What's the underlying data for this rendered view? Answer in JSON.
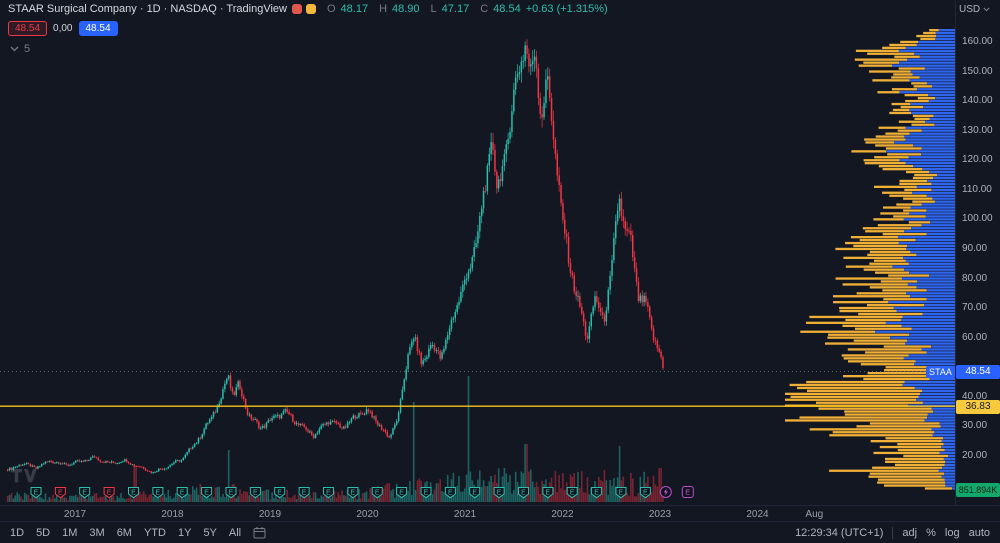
{
  "header": {
    "title": "STAAR Surgical Company · 1D · NASDAQ · TradingView",
    "ohlc": {
      "o_label": "O",
      "o": "48.17",
      "h_label": "H",
      "h": "48.90",
      "l_label": "L",
      "l": "47.17",
      "c_label": "C",
      "c": "48.54",
      "change": "+0.63 (+1.315%)"
    },
    "sell": "48.54",
    "spread": "0,00",
    "buy": "48.54",
    "indicator_value": "5",
    "currency": "USD"
  },
  "price_axis": {
    "labels": [
      "160.00",
      "150.00",
      "140.00",
      "130.00",
      "120.00",
      "110.00",
      "100.00",
      "90.00",
      "80.00",
      "70.00",
      "60.00",
      "40.00",
      "30.00",
      "20.00"
    ],
    "symbol_tag": "STAA",
    "last_price": "48.54",
    "level_label": "36.83",
    "volume_tag": "851.894K"
  },
  "time_axis": {
    "ticks": [
      {
        "label": "2017",
        "t": 2017
      },
      {
        "label": "2018",
        "t": 2018
      },
      {
        "label": "2019",
        "t": 2019
      },
      {
        "label": "2020",
        "t": 2020
      },
      {
        "label": "2021",
        "t": 2021
      },
      {
        "label": "2022",
        "t": 2022
      },
      {
        "label": "2023",
        "t": 2023
      },
      {
        "label": "2024",
        "t": 2024
      },
      {
        "label": "Aug",
        "t": 2024.583
      }
    ]
  },
  "footer": {
    "ranges": [
      "1D",
      "5D",
      "1M",
      "3M",
      "6M",
      "YTD",
      "1Y",
      "5Y",
      "All"
    ],
    "clock": "12:29:34 (UTC+1)",
    "modes": [
      "adj",
      "%",
      "log",
      "auto"
    ]
  },
  "chart_data": {
    "type": "candlestick",
    "symbol": "STAA",
    "title": "STAAR Surgical Company",
    "interval": "1D",
    "exchange": "NASDAQ",
    "currency": "USD",
    "last_close": 48.54,
    "change": 0.63,
    "change_pct": 1.315,
    "dotted_line_price": 48.54,
    "yellow_line_price": 36.83,
    "last_volume_label": "851.894K",
    "ylim": [
      8,
      168
    ],
    "x_range_years": [
      2016.3,
      2025.0
    ],
    "colors": {
      "up": "#2abfad",
      "down": "#f23645",
      "yellow_line": "#f5c518",
      "profile_yellow": "#f0b036",
      "profile_blue": "#2e66f0",
      "accent_blue": "#2962ff",
      "level_tag": "#f7ca3e",
      "volume_tag_green": "#12a76b"
    },
    "candles": {
      "count": 348,
      "t_start": 2016.31,
      "t_end": 2023.05
    },
    "price_anchors": [
      [
        2016.35,
        15.5
      ],
      [
        2016.45,
        17.5
      ],
      [
        2016.6,
        16.0
      ],
      [
        2016.75,
        18.5
      ],
      [
        2016.9,
        17.0
      ],
      [
        2017.05,
        18.0
      ],
      [
        2017.2,
        19.5
      ],
      [
        2017.35,
        17.5
      ],
      [
        2017.5,
        18.5
      ],
      [
        2017.65,
        16.5
      ],
      [
        2017.8,
        14.5
      ],
      [
        2017.95,
        16.5
      ],
      [
        2018.1,
        19.0
      ],
      [
        2018.25,
        25.0
      ],
      [
        2018.4,
        33.0
      ],
      [
        2018.5,
        40.0
      ],
      [
        2018.57,
        47.5
      ],
      [
        2018.62,
        40.5
      ],
      [
        2018.68,
        44.0
      ],
      [
        2018.78,
        34.0
      ],
      [
        2018.9,
        29.5
      ],
      [
        2019.0,
        32.0
      ],
      [
        2019.15,
        35.0
      ],
      [
        2019.3,
        30.5
      ],
      [
        2019.45,
        27.0
      ],
      [
        2019.6,
        32.0
      ],
      [
        2019.75,
        29.5
      ],
      [
        2019.9,
        34.0
      ],
      [
        2020.0,
        35.5
      ],
      [
        2020.12,
        30.5
      ],
      [
        2020.22,
        26.0
      ],
      [
        2020.32,
        34.0
      ],
      [
        2020.42,
        55.0
      ],
      [
        2020.47,
        61.0
      ],
      [
        2020.55,
        51.0
      ],
      [
        2020.65,
        57.5
      ],
      [
        2020.75,
        53.5
      ],
      [
        2020.85,
        63.5
      ],
      [
        2020.95,
        75.0
      ],
      [
        2021.05,
        83.0
      ],
      [
        2021.15,
        99.0
      ],
      [
        2021.22,
        113.0
      ],
      [
        2021.28,
        129.0
      ],
      [
        2021.33,
        109.0
      ],
      [
        2021.4,
        119.0
      ],
      [
        2021.47,
        136.0
      ],
      [
        2021.55,
        150.0
      ],
      [
        2021.62,
        161.5
      ],
      [
        2021.67,
        147.0
      ],
      [
        2021.72,
        157.0
      ],
      [
        2021.78,
        136.0
      ],
      [
        2021.85,
        146.0
      ],
      [
        2021.92,
        125.0
      ],
      [
        2022.0,
        99.0
      ],
      [
        2022.08,
        84.0
      ],
      [
        2022.16,
        72.0
      ],
      [
        2022.25,
        60.0
      ],
      [
        2022.33,
        73.0
      ],
      [
        2022.42,
        66.0
      ],
      [
        2022.5,
        81.0
      ],
      [
        2022.58,
        109.0
      ],
      [
        2022.64,
        96.0
      ],
      [
        2022.7,
        92.0
      ],
      [
        2022.78,
        74.0
      ],
      [
        2022.86,
        70.5
      ],
      [
        2022.93,
        61.0
      ],
      [
        2023.0,
        54.0
      ],
      [
        2023.04,
        48.5
      ]
    ],
    "volume_anchors": [
      [
        2016.4,
        7
      ],
      [
        2017.0,
        6
      ],
      [
        2017.5,
        7
      ],
      [
        2018.0,
        9
      ],
      [
        2018.5,
        16
      ],
      [
        2019.0,
        9
      ],
      [
        2019.5,
        8
      ],
      [
        2020.0,
        10
      ],
      [
        2020.4,
        18
      ],
      [
        2021.0,
        22
      ],
      [
        2021.6,
        26
      ],
      [
        2022.0,
        22
      ],
      [
        2022.6,
        24
      ],
      [
        2023.05,
        20
      ]
    ],
    "volume_spikes": [
      [
        2017.62,
        36
      ],
      [
        2018.58,
        52
      ],
      [
        2020.47,
        100
      ],
      [
        2021.04,
        126
      ],
      [
        2021.63,
        58
      ],
      [
        2022.58,
        56
      ],
      [
        2023.0,
        34
      ]
    ],
    "profile": {
      "p_min": 9,
      "p_max": 164,
      "step": 1.0
    },
    "profile_len_anchors": [
      [
        8,
        20
      ],
      [
        12,
        95
      ],
      [
        15,
        95
      ],
      [
        18,
        60
      ],
      [
        22,
        70
      ],
      [
        26,
        90
      ],
      [
        30,
        120
      ],
      [
        33,
        140
      ],
      [
        36,
        150
      ],
      [
        39,
        168
      ],
      [
        42,
        160
      ],
      [
        45,
        120
      ],
      [
        48,
        90
      ],
      [
        52,
        80
      ],
      [
        56,
        95
      ],
      [
        60,
        115
      ],
      [
        64,
        130
      ],
      [
        68,
        118
      ],
      [
        72,
        105
      ],
      [
        76,
        98
      ],
      [
        80,
        90
      ],
      [
        85,
        100
      ],
      [
        90,
        92
      ],
      [
        95,
        75
      ],
      [
        100,
        62
      ],
      [
        105,
        56
      ],
      [
        110,
        68
      ],
      [
        115,
        58
      ],
      [
        120,
        72
      ],
      [
        125,
        80
      ],
      [
        130,
        62
      ],
      [
        135,
        48
      ],
      [
        140,
        55
      ],
      [
        145,
        62
      ],
      [
        150,
        78
      ],
      [
        155,
        88
      ],
      [
        158,
        70
      ],
      [
        162,
        40
      ],
      [
        165,
        18
      ]
    ],
    "profile_blue_anchors": [
      [
        8,
        0.1
      ],
      [
        20,
        0.15
      ],
      [
        35,
        0.2
      ],
      [
        45,
        0.28
      ],
      [
        55,
        0.38
      ],
      [
        70,
        0.42
      ],
      [
        90,
        0.48
      ],
      [
        120,
        0.5
      ],
      [
        140,
        0.58
      ],
      [
        160,
        0.58
      ],
      [
        166,
        0.5
      ]
    ],
    "earnings_markers": [
      {
        "t": 2016.6,
        "state": "up"
      },
      {
        "t": 2016.85,
        "state": "down"
      },
      {
        "t": 2017.1,
        "state": "up"
      },
      {
        "t": 2017.35,
        "state": "down"
      },
      {
        "t": 2017.6,
        "state": "up"
      },
      {
        "t": 2017.85,
        "state": "up"
      },
      {
        "t": 2018.1,
        "state": "up"
      },
      {
        "t": 2018.35,
        "state": "up"
      },
      {
        "t": 2018.6,
        "state": "up"
      },
      {
        "t": 2018.85,
        "state": "up"
      },
      {
        "t": 2019.1,
        "state": "up"
      },
      {
        "t": 2019.35,
        "state": "up"
      },
      {
        "t": 2019.6,
        "state": "up"
      },
      {
        "t": 2019.85,
        "state": "up"
      },
      {
        "t": 2020.1,
        "state": "up"
      },
      {
        "t": 2020.35,
        "state": "up"
      },
      {
        "t": 2020.6,
        "state": "up"
      },
      {
        "t": 2020.85,
        "state": "up"
      },
      {
        "t": 2021.1,
        "state": "up"
      },
      {
        "t": 2021.35,
        "state": "up"
      },
      {
        "t": 2021.6,
        "state": "up"
      },
      {
        "t": 2021.85,
        "state": "up"
      },
      {
        "t": 2022.1,
        "state": "up"
      },
      {
        "t": 2022.35,
        "state": "up"
      },
      {
        "t": 2022.6,
        "state": "up"
      },
      {
        "t": 2022.85,
        "state": "up"
      }
    ],
    "special_markers": [
      {
        "t": 2023.06,
        "kind": "flash"
      },
      {
        "t": 2023.28,
        "kind": "estimate"
      }
    ]
  }
}
